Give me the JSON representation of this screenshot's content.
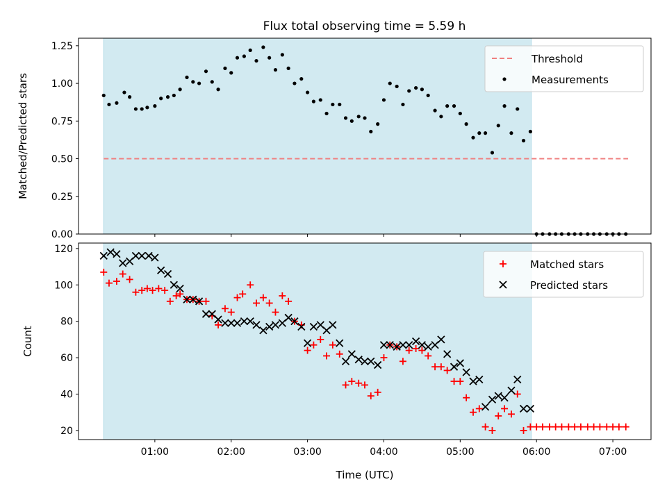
{
  "figure": {
    "title": "Flux total observing time = 5.59 h"
  },
  "chart_data": [
    {
      "type": "scatter",
      "name": "ratio-panel",
      "title": "Flux total observing time = 5.59 h",
      "xlabel": "",
      "ylabel": "Matched/Predicted stars",
      "xlim": [
        0.0,
        7.5
      ],
      "ylim": [
        0.0,
        1.3
      ],
      "yticks": [
        0.0,
        0.25,
        0.5,
        0.75,
        1.0,
        1.25
      ],
      "ytick_labels": [
        "0.00",
        "0.25",
        "0.50",
        "0.75",
        "1.00",
        "1.25"
      ],
      "xticks": [
        1,
        2,
        3,
        4,
        5,
        6,
        7
      ],
      "grid": false,
      "legend_position": "upper right",
      "shaded_span": {
        "x": [
          0.33,
          5.93
        ],
        "color": "#add8e6"
      },
      "threshold": {
        "name": "Threshold",
        "value": 0.5,
        "x": [
          0.33,
          7.2
        ],
        "color": "#f08080",
        "style": "dashed"
      },
      "series": [
        {
          "name": "Measurements",
          "marker": "dot",
          "color": "#000000",
          "x": [
            0.33,
            0.4,
            0.5,
            0.6,
            0.67,
            0.75,
            0.83,
            0.9,
            1.0,
            1.08,
            1.17,
            1.25,
            1.33,
            1.42,
            1.5,
            1.58,
            1.67,
            1.75,
            1.83,
            1.92,
            2.0,
            2.08,
            2.17,
            2.25,
            2.33,
            2.42,
            2.5,
            2.58,
            2.67,
            2.75,
            2.83,
            2.92,
            3.0,
            3.08,
            3.17,
            3.25,
            3.33,
            3.42,
            3.5,
            3.58,
            3.67,
            3.75,
            3.83,
            3.92,
            4.0,
            4.08,
            4.17,
            4.25,
            4.33,
            4.42,
            4.5,
            4.58,
            4.67,
            4.75,
            4.83,
            4.92,
            5.0,
            5.08,
            5.17,
            5.25,
            5.33,
            5.42,
            5.5,
            5.58,
            5.67,
            5.75,
            5.83,
            5.92,
            6.0,
            6.08,
            6.17,
            6.25,
            6.33,
            6.42,
            6.5,
            6.58,
            6.67,
            6.75,
            6.83,
            6.92,
            7.0,
            7.08,
            7.17
          ],
          "y": [
            0.92,
            0.86,
            0.87,
            0.94,
            0.91,
            0.83,
            0.83,
            0.84,
            0.85,
            0.9,
            0.91,
            0.92,
            0.96,
            1.04,
            1.01,
            1.0,
            1.08,
            1.01,
            0.96,
            1.1,
            1.07,
            1.17,
            1.18,
            1.22,
            1.15,
            1.24,
            1.17,
            1.09,
            1.19,
            1.1,
            1.0,
            1.03,
            0.94,
            0.88,
            0.89,
            0.8,
            0.86,
            0.86,
            0.77,
            0.75,
            0.78,
            0.77,
            0.68,
            0.73,
            0.89,
            1.0,
            0.98,
            0.86,
            0.95,
            0.97,
            0.96,
            0.92,
            0.82,
            0.78,
            0.85,
            0.85,
            0.8,
            0.73,
            0.64,
            0.67,
            0.67,
            0.54,
            0.72,
            0.85,
            0.67,
            0.83,
            0.62,
            0.68,
            0.0,
            0.0,
            0.0,
            0.0,
            0.0,
            0.0,
            0.0,
            0.0,
            0.0,
            0.0,
            0.0,
            0.0,
            0.0,
            0.0,
            0.0
          ]
        }
      ]
    },
    {
      "type": "scatter",
      "name": "count-panel",
      "title": "",
      "xlabel": "Time (UTC)",
      "ylabel": "Count",
      "xlim": [
        0.0,
        7.5
      ],
      "ylim": [
        15,
        123
      ],
      "yticks": [
        20,
        40,
        60,
        80,
        100,
        120
      ],
      "ytick_labels": [
        "20",
        "40",
        "60",
        "80",
        "100",
        "120"
      ],
      "xticks": [
        1,
        2,
        3,
        4,
        5,
        6,
        7
      ],
      "xtick_labels": [
        "01:00",
        "02:00",
        "03:00",
        "04:00",
        "05:00",
        "06:00",
        "07:00"
      ],
      "grid": false,
      "legend_position": "upper right",
      "shaded_span": {
        "x": [
          0.33,
          5.93
        ],
        "color": "#add8e6"
      },
      "series": [
        {
          "name": "Matched stars",
          "marker": "plus",
          "color": "#ff0000",
          "x": [
            0.33,
            0.4,
            0.5,
            0.58,
            0.67,
            0.75,
            0.83,
            0.9,
            0.97,
            1.05,
            1.13,
            1.2,
            1.28,
            1.33,
            1.42,
            1.5,
            1.58,
            1.67,
            1.75,
            1.83,
            1.92,
            2.0,
            2.08,
            2.15,
            2.25,
            2.33,
            2.42,
            2.5,
            2.58,
            2.67,
            2.75,
            2.83,
            2.92,
            3.0,
            3.08,
            3.17,
            3.25,
            3.33,
            3.42,
            3.5,
            3.58,
            3.67,
            3.75,
            3.83,
            3.92,
            4.0,
            4.08,
            4.17,
            4.25,
            4.33,
            4.42,
            4.5,
            4.58,
            4.67,
            4.75,
            4.83,
            4.92,
            5.0,
            5.08,
            5.17,
            5.25,
            5.33,
            5.42,
            5.5,
            5.58,
            5.67,
            5.75,
            5.83,
            5.92,
            6.0,
            6.08,
            6.17,
            6.25,
            6.33,
            6.42,
            6.5,
            6.58,
            6.67,
            6.75,
            6.83,
            6.92,
            7.0,
            7.08,
            7.17
          ],
          "y": [
            107,
            101,
            102,
            106,
            103,
            96,
            97,
            98,
            97,
            98,
            97,
            91,
            94,
            95,
            92,
            92,
            91,
            91,
            83,
            78,
            87,
            85,
            93,
            95,
            100,
            90,
            93,
            90,
            85,
            94,
            91,
            80,
            78,
            64,
            67,
            70,
            61,
            67,
            62,
            45,
            47,
            46,
            45,
            39,
            41,
            60,
            67,
            66,
            58,
            64,
            65,
            64,
            61,
            55,
            55,
            53,
            47,
            47,
            38,
            30,
            32,
            22,
            20,
            28,
            32,
            29,
            40,
            20,
            22,
            22,
            22,
            22,
            22,
            22,
            22,
            22,
            22,
            22,
            22,
            22,
            22,
            22,
            22,
            22
          ]
        },
        {
          "name": "Predicted stars",
          "marker": "x",
          "color": "#000000",
          "x": [
            0.33,
            0.42,
            0.5,
            0.58,
            0.67,
            0.75,
            0.83,
            0.92,
            1.0,
            1.08,
            1.17,
            1.25,
            1.33,
            1.42,
            1.5,
            1.58,
            1.67,
            1.75,
            1.83,
            1.92,
            2.0,
            2.08,
            2.17,
            2.25,
            2.33,
            2.42,
            2.5,
            2.58,
            2.67,
            2.75,
            2.83,
            2.92,
            3.0,
            3.08,
            3.17,
            3.25,
            3.33,
            3.42,
            3.5,
            3.58,
            3.67,
            3.75,
            3.83,
            3.92,
            4.0,
            4.08,
            4.17,
            4.25,
            4.33,
            4.42,
            4.5,
            4.58,
            4.67,
            4.75,
            4.83,
            4.92,
            5.0,
            5.08,
            5.17,
            5.25,
            5.33,
            5.42,
            5.5,
            5.58,
            5.67,
            5.75,
            5.83,
            5.92
          ],
          "y": [
            116,
            118,
            117,
            112,
            113,
            116,
            116,
            116,
            115,
            108,
            106,
            100,
            98,
            92,
            92,
            91,
            84,
            84,
            81,
            79,
            79,
            79,
            80,
            80,
            78,
            75,
            77,
            78,
            79,
            82,
            80,
            77,
            68,
            77,
            78,
            75,
            78,
            68,
            58,
            62,
            59,
            58,
            58,
            56,
            67,
            67,
            66,
            67,
            67,
            69,
            67,
            66,
            67,
            70,
            62,
            55,
            57,
            52,
            47,
            48,
            33,
            37,
            39,
            38,
            42,
            48,
            32,
            32
          ]
        }
      ]
    }
  ]
}
